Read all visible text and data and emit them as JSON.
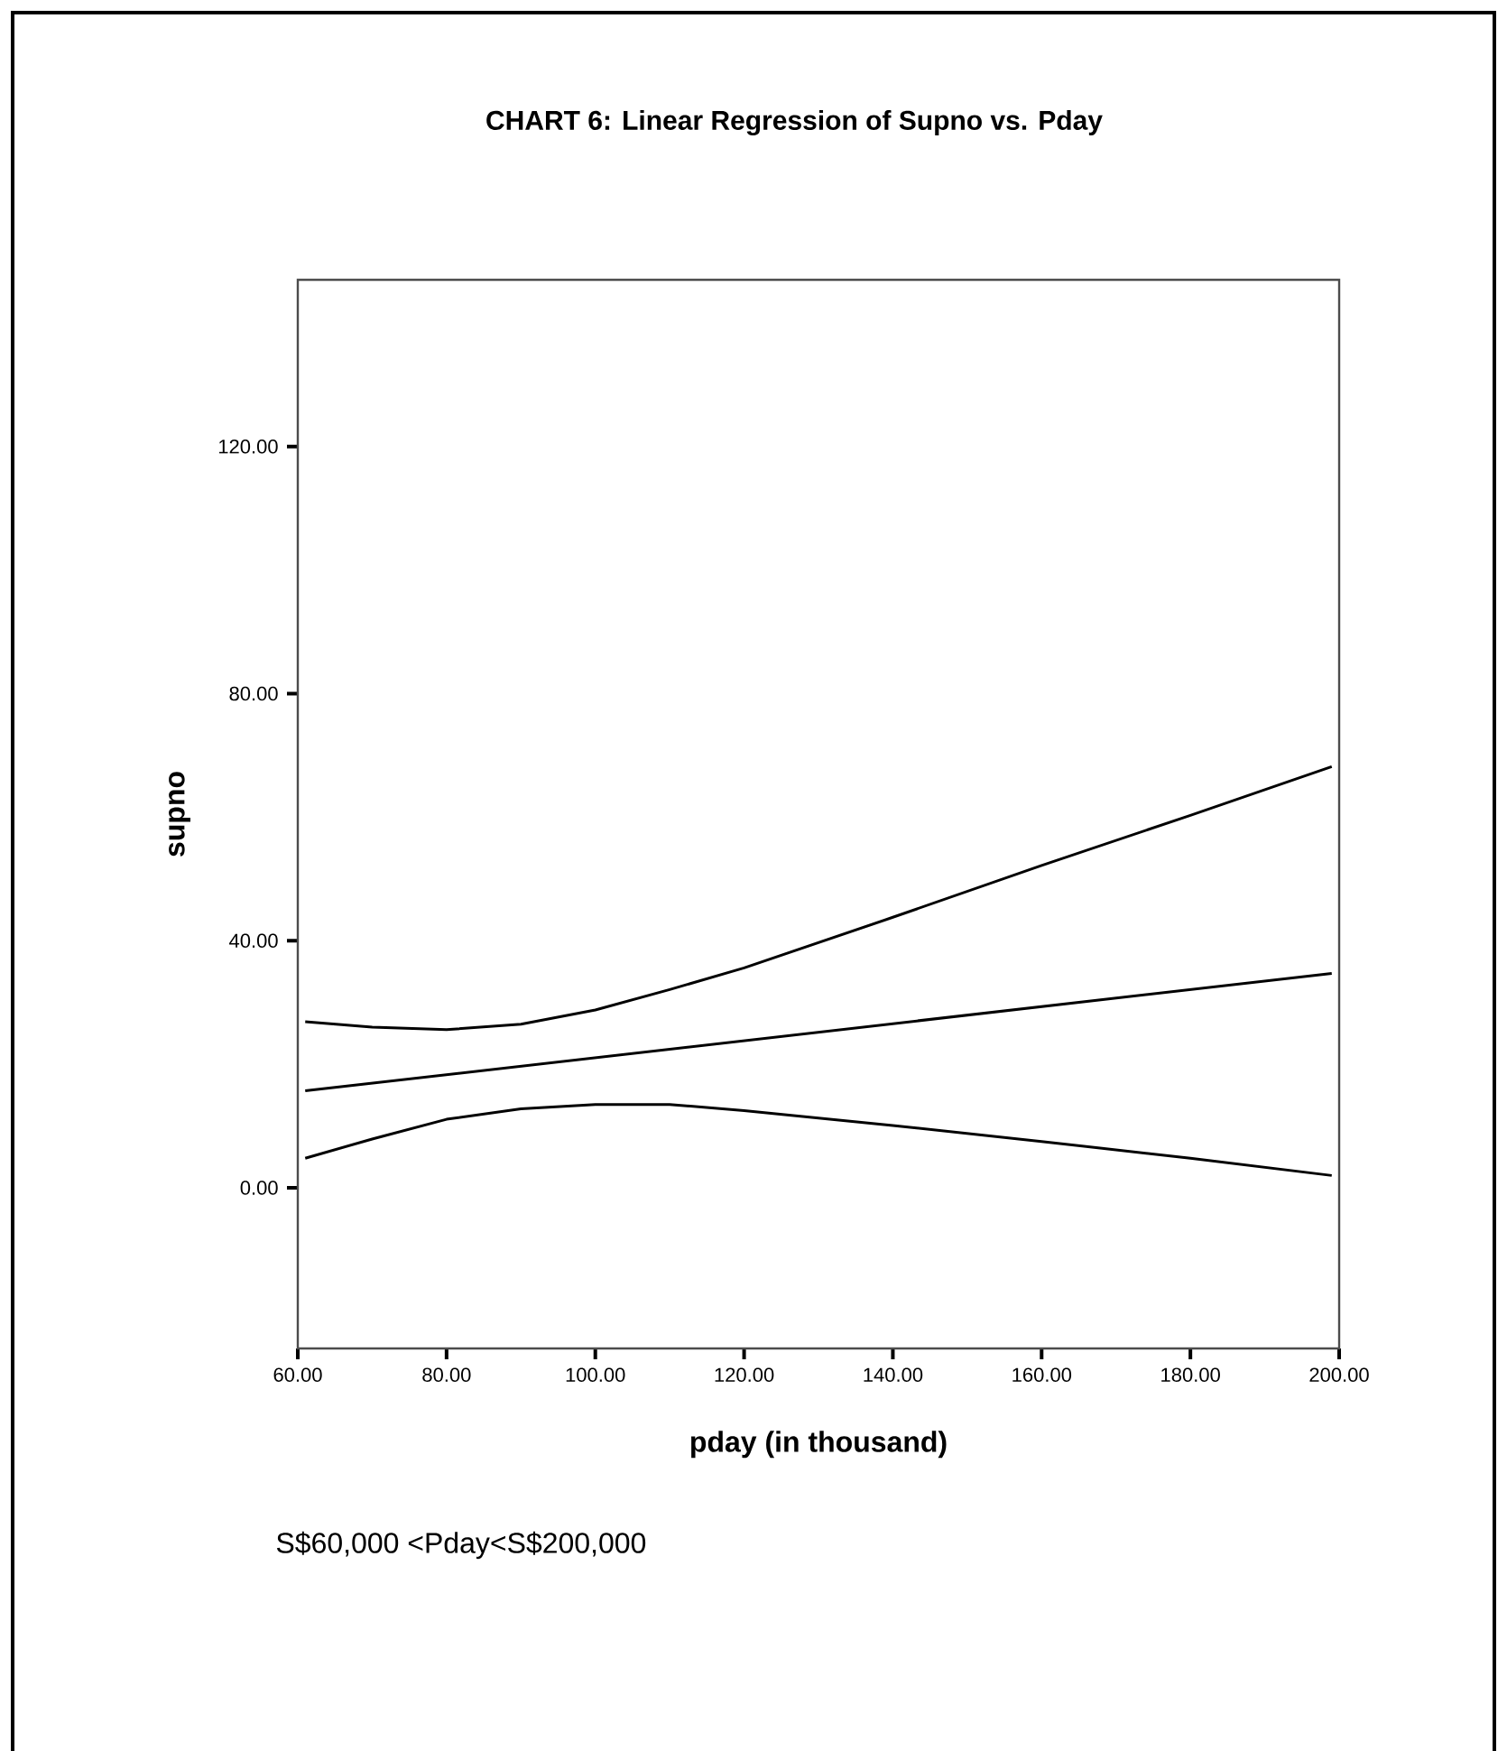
{
  "chart_data": {
    "type": "line",
    "title": "**CHART 6: Linear Regression of Supno vs. Pday**",
    "xlabel": "**pday (in thousand)**",
    "ylabel": "**supno**",
    "annotations": [
      "S$60,000 <Pday<S$200,000"
    ],
    "xlim": [
      60,
      200
    ],
    "ylim": [
      -26,
      147
    ],
    "xticks": [
      {
        "value": 60,
        "label": "60.00"
      },
      {
        "value": 80,
        "label": "80.00"
      },
      {
        "value": 100,
        "label": "100.00"
      },
      {
        "value": 120,
        "label": "120.00"
      },
      {
        "value": 140,
        "label": "140.00"
      },
      {
        "value": 160,
        "label": "160.00"
      },
      {
        "value": 180,
        "label": "180.00"
      },
      {
        "value": 200,
        "label": "200.00"
      }
    ],
    "yticks": [
      {
        "value": 0,
        "label": "0.00"
      },
      {
        "value": 40,
        "label": "40.00"
      },
      {
        "value": 80,
        "label": "80.00"
      },
      {
        "value": 120,
        "label": "120.00"
      }
    ],
    "series": [
      {
        "color": "#000000",
        "x": [
          61,
          70,
          80,
          90,
          100,
          110,
          120,
          140,
          160,
          180,
          199
        ],
        "values": [
          26.9,
          26,
          25.6,
          26.5,
          28.8,
          32.1,
          35.6,
          43.8,
          52.2,
          60.3,
          68.2
        ]
      },
      {
        "color": "#000000",
        "x": [
          61,
          199
        ],
        "values": [
          15.7,
          34.7
        ]
      },
      {
        "color": "#000000",
        "x": [
          61,
          70,
          80,
          90,
          100,
          110,
          120,
          140,
          160,
          180,
          199
        ],
        "values": [
          4.8,
          7.9,
          11.1,
          12.8,
          13.5,
          13.5,
          12.5,
          10.1,
          7.5,
          4.8,
          2.0
        ]
      }
    ]
  }
}
